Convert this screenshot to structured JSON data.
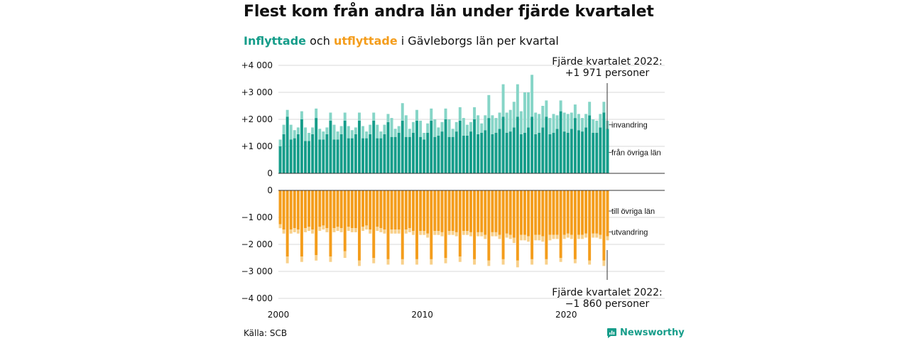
{
  "title": "Flest kom från andra län under fjärde kvartalet",
  "subtitle": {
    "part1": "Inflyttade",
    "part2": " och ",
    "part3": "utflyttade",
    "part4": " i Gävleborgs län per kvartal"
  },
  "source": "Källa: SCB",
  "brand": "Newsworthy",
  "colors": {
    "in_main": "#169d8a",
    "in_light": "#86d5c7",
    "out_main": "#f49d1c",
    "out_light": "#f8d08a"
  },
  "annotations": {
    "top": [
      "Fjärde kvartalet 2022:",
      "+1 971 personer"
    ],
    "bottom": [
      "Fjärde kvartalet 2022:",
      "−1 860 personer"
    ]
  },
  "chart_data": {
    "type": "bar",
    "x_ticks": [
      "2000",
      "2010",
      "2020"
    ],
    "top_panel": {
      "ylim": [
        0,
        4000
      ],
      "y_ticks": [
        "+4 000",
        "+3 000",
        "+2 000",
        "+1 000",
        "0"
      ],
      "series_labels": [
        "invandring",
        "från övriga län"
      ]
    },
    "bottom_panel": {
      "ylim": [
        -4000,
        0
      ],
      "y_ticks": [
        "0",
        "−1 000",
        "−2 000",
        "−3 000",
        "−4 000"
      ],
      "series_labels": [
        "till övriga län",
        "utvandring"
      ]
    },
    "x": [
      "2000Q1",
      "2000Q2",
      "2000Q3",
      "2000Q4",
      "2001Q1",
      "2001Q2",
      "2001Q3",
      "2001Q4",
      "2002Q1",
      "2002Q2",
      "2002Q3",
      "2002Q4",
      "2003Q1",
      "2003Q2",
      "2003Q3",
      "2003Q4",
      "2004Q1",
      "2004Q2",
      "2004Q3",
      "2004Q4",
      "2005Q1",
      "2005Q2",
      "2005Q3",
      "2005Q4",
      "2006Q1",
      "2006Q2",
      "2006Q3",
      "2006Q4",
      "2007Q1",
      "2007Q2",
      "2007Q3",
      "2007Q4",
      "2008Q1",
      "2008Q2",
      "2008Q3",
      "2008Q4",
      "2009Q1",
      "2009Q2",
      "2009Q3",
      "2009Q4",
      "2010Q1",
      "2010Q2",
      "2010Q3",
      "2010Q4",
      "2011Q1",
      "2011Q2",
      "2011Q3",
      "2011Q4",
      "2012Q1",
      "2012Q2",
      "2012Q3",
      "2012Q4",
      "2013Q1",
      "2013Q2",
      "2013Q3",
      "2013Q4",
      "2014Q1",
      "2014Q2",
      "2014Q3",
      "2014Q4",
      "2015Q1",
      "2015Q2",
      "2015Q3",
      "2015Q4",
      "2016Q1",
      "2016Q2",
      "2016Q3",
      "2016Q4",
      "2017Q1",
      "2017Q2",
      "2017Q3",
      "2017Q4",
      "2018Q1",
      "2018Q2",
      "2018Q3",
      "2018Q4",
      "2019Q1",
      "2019Q2",
      "2019Q3",
      "2019Q4",
      "2020Q1",
      "2020Q2",
      "2020Q3",
      "2020Q4",
      "2021Q1",
      "2021Q2",
      "2021Q3",
      "2021Q4",
      "2022Q1",
      "2022Q2",
      "2022Q3",
      "2022Q4"
    ],
    "series": [
      {
        "name": "från övriga län",
        "values": [
          1000,
          1450,
          2100,
          1250,
          1300,
          1450,
          2000,
          1200,
          1200,
          1450,
          2050,
          1250,
          1250,
          1450,
          1950,
          1250,
          1250,
          1450,
          1950,
          1300,
          1300,
          1450,
          1950,
          1300,
          1300,
          1450,
          1950,
          1300,
          1300,
          1450,
          1900,
          1350,
          1350,
          1500,
          1950,
          1350,
          1350,
          1500,
          1950,
          1350,
          1250,
          1500,
          1950,
          1350,
          1400,
          1550,
          2000,
          1350,
          1350,
          1550,
          1950,
          1400,
          1400,
          1550,
          2000,
          1450,
          1500,
          1600,
          2050,
          1450,
          1500,
          1650,
          2100,
          1500,
          1550,
          1700,
          2100,
          1450,
          1500,
          1700,
          2100,
          1450,
          1500,
          1700,
          2100,
          1450,
          1500,
          1650,
          2300,
          1550,
          1500,
          1650,
          2050,
          1600,
          1550,
          1700,
          2150,
          1500,
          1500,
          1700,
          2250,
          1650
        ]
      },
      {
        "name": "invandring",
        "values": [
          250,
          350,
          250,
          550,
          300,
          250,
          300,
          500,
          300,
          250,
          350,
          400,
          300,
          250,
          300,
          550,
          300,
          300,
          300,
          450,
          300,
          250,
          300,
          450,
          250,
          350,
          300,
          500,
          250,
          350,
          300,
          700,
          300,
          250,
          650,
          800,
          300,
          400,
          400,
          600,
          250,
          350,
          450,
          650,
          300,
          350,
          400,
          650,
          300,
          350,
          500,
          650,
          400,
          350,
          450,
          700,
          350,
          550,
          850,
          700,
          550,
          600,
          1200,
          750,
          800,
          950,
          1200,
          850,
          1500,
          1300,
          1550,
          800,
          700,
          800,
          600,
          600,
          700,
          500,
          400,
          700,
          700,
          600,
          500,
          600,
          500,
          500,
          500,
          500,
          450,
          500,
          400,
          300
        ]
      },
      {
        "name": "till övriga län",
        "values": [
          1250,
          1450,
          2450,
          1450,
          1400,
          1450,
          2450,
          1400,
          1350,
          1450,
          2400,
          1350,
          1300,
          1400,
          2450,
          1400,
          1350,
          1400,
          2250,
          1350,
          1400,
          1400,
          2600,
          1350,
          1300,
          1450,
          2500,
          1350,
          1400,
          1450,
          2550,
          1450,
          1450,
          1450,
          2550,
          1450,
          1400,
          1500,
          2550,
          1500,
          1500,
          1600,
          2550,
          1500,
          1500,
          1550,
          2500,
          1500,
          1500,
          1550,
          2450,
          1500,
          1500,
          1550,
          2550,
          1550,
          1550,
          1650,
          2600,
          1550,
          1550,
          1650,
          2550,
          1600,
          1650,
          1750,
          2600,
          1650,
          1650,
          1700,
          2550,
          1650,
          1650,
          1700,
          2550,
          1650,
          1650,
          1650,
          2500,
          1650,
          1600,
          1650,
          2550,
          1650,
          1650,
          1600,
          2600,
          1600,
          1600,
          1650,
          2600,
          1700
        ]
      },
      {
        "name": "utvandring",
        "values": [
          150,
          150,
          250,
          150,
          150,
          150,
          200,
          150,
          150,
          150,
          200,
          150,
          150,
          150,
          200,
          150,
          150,
          150,
          250,
          150,
          150,
          150,
          200,
          150,
          150,
          150,
          200,
          150,
          150,
          150,
          200,
          150,
          150,
          150,
          200,
          150,
          150,
          150,
          200,
          150,
          150,
          150,
          200,
          150,
          150,
          150,
          200,
          150,
          150,
          150,
          200,
          150,
          150,
          150,
          200,
          150,
          150,
          150,
          200,
          150,
          150,
          150,
          200,
          150,
          150,
          200,
          250,
          200,
          200,
          200,
          200,
          200,
          200,
          200,
          200,
          200,
          150,
          150,
          150,
          150,
          150,
          150,
          150,
          150,
          150,
          150,
          150,
          150,
          150,
          150,
          200,
          150
        ]
      }
    ]
  }
}
